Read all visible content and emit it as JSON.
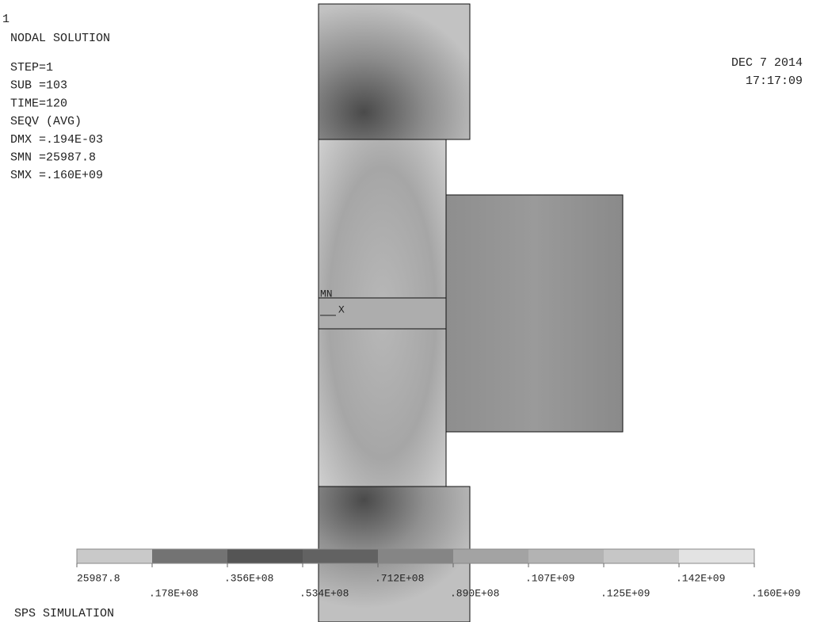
{
  "header": {
    "window_number": "1",
    "title": "NODAL SOLUTION",
    "date": "DEC  7 2014",
    "time": "17:17:09"
  },
  "info": [
    "STEP=1",
    "SUB =103",
    "TIME=120",
    "SEQV      (AVG)",
    "DMX =.194E-03",
    "SMN =25987.8",
    "SMX =.160E+09"
  ],
  "model": {
    "min_marker": "MN",
    "axis_label": "X"
  },
  "legend": {
    "colors": [
      "#c9c9c9",
      "#737373",
      "#555555",
      "#626262",
      "#858585",
      "#a3a3a3",
      "#b3b3b3",
      "#c6c6c6",
      "#e3e3e3"
    ],
    "labels": [
      "25987.8",
      ".178E+08",
      ".356E+08",
      ".534E+08",
      ".712E+08",
      ".890E+08",
      ".107E+09",
      ".125E+09",
      ".142E+09",
      ".160E+09"
    ]
  },
  "footer": {
    "text": "SPS SIMULATION"
  }
}
